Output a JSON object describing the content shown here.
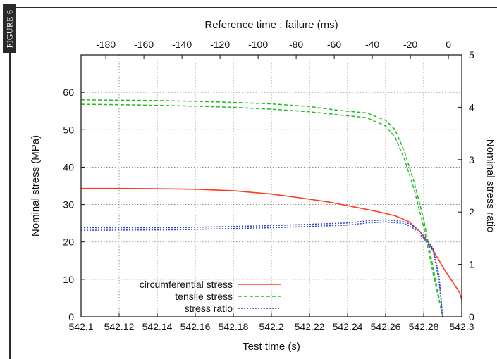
{
  "figure_label": "FIGURE 6",
  "colors": {
    "circumferential": "#ff3b1f",
    "tensile": "#22bb22",
    "ratio": "#3344cc",
    "grid": "#777777",
    "axis": "#111111"
  },
  "chart_data": {
    "type": "line",
    "title": "",
    "xlabel": "Test time (s)",
    "ylabel": "Nominal stress (MPa)",
    "x2label": "Reference time : failure (ms)",
    "y2label": "Nominal stress ratio",
    "xlim": [
      542.1,
      542.3
    ],
    "ylim": [
      0,
      70
    ],
    "x2lim": [
      -193,
      7
    ],
    "y2lim": [
      0,
      5
    ],
    "x_ticks": [
      "542.1",
      "542.12",
      "542.14",
      "542.16",
      "542.18",
      "542.2",
      "542.22",
      "542.24",
      "542.26",
      "542.28",
      "542.3"
    ],
    "x_tick_values": [
      542.1,
      542.12,
      542.14,
      542.16,
      542.18,
      542.2,
      542.22,
      542.24,
      542.26,
      542.28,
      542.3
    ],
    "y_ticks": [
      "0",
      "10",
      "20",
      "30",
      "40",
      "50",
      "60"
    ],
    "y_tick_values": [
      0,
      10,
      20,
      30,
      40,
      50,
      60
    ],
    "x2_ticks": [
      "-180",
      "-160",
      "-140",
      "-120",
      "-100",
      "-80",
      "-60",
      "-40",
      "-20",
      "0"
    ],
    "x2_tick_values": [
      -180,
      -160,
      -140,
      -120,
      -100,
      -80,
      -60,
      -40,
      -20,
      0
    ],
    "y2_ticks": [
      "0",
      "1",
      "2",
      "3",
      "4",
      "5"
    ],
    "y2_tick_values": [
      0,
      1,
      2,
      3,
      4,
      5
    ],
    "grid": true,
    "legend_position": "bottom-left",
    "series": [
      {
        "name": "circumferential stress",
        "axis": "left",
        "style": "solid",
        "color": "#ff3b1f",
        "points": [
          [
            542.1,
            34.3
          ],
          [
            542.12,
            34.3
          ],
          [
            542.14,
            34.25
          ],
          [
            542.16,
            34.1
          ],
          [
            542.18,
            33.7
          ],
          [
            542.2,
            32.8
          ],
          [
            542.215,
            31.8
          ],
          [
            542.23,
            30.7
          ],
          [
            542.245,
            29.2
          ],
          [
            542.255,
            28.2
          ],
          [
            542.265,
            27.0
          ],
          [
            542.272,
            25.5
          ],
          [
            542.278,
            22.8
          ],
          [
            542.283,
            19.5
          ],
          [
            542.287,
            16.0
          ],
          [
            542.291,
            12.5
          ],
          [
            542.295,
            9.5
          ],
          [
            542.299,
            6.3
          ],
          [
            542.3,
            4.5
          ]
        ]
      },
      {
        "name": "tensile stress",
        "axis": "left",
        "style": "dashed",
        "color": "#22bb22",
        "points": [
          [
            542.1,
            58.0
          ],
          [
            542.12,
            57.9
          ],
          [
            542.14,
            57.8
          ],
          [
            542.16,
            57.6
          ],
          [
            542.18,
            57.3
          ],
          [
            542.2,
            56.9
          ],
          [
            542.22,
            56.2
          ],
          [
            542.235,
            55.2
          ],
          [
            542.25,
            54.5
          ],
          [
            542.26,
            52.5
          ],
          [
            542.265,
            50.0
          ],
          [
            542.27,
            44.0
          ],
          [
            542.275,
            36.0
          ],
          [
            542.28,
            26.0
          ],
          [
            542.285,
            13.0
          ],
          [
            542.29,
            0.0
          ]
        ]
      },
      {
        "name": "tensile stress",
        "axis": "left",
        "style": "dashed",
        "color": "#22bb22",
        "points": [
          [
            542.1,
            56.8
          ],
          [
            542.12,
            56.7
          ],
          [
            542.14,
            56.5
          ],
          [
            542.16,
            56.3
          ],
          [
            542.18,
            56.0
          ],
          [
            542.2,
            55.5
          ],
          [
            542.22,
            54.8
          ],
          [
            542.235,
            54.0
          ],
          [
            542.25,
            53.2
          ],
          [
            542.26,
            51.0
          ],
          [
            542.265,
            48.0
          ],
          [
            542.27,
            42.0
          ],
          [
            542.275,
            34.0
          ],
          [
            542.28,
            24.0
          ],
          [
            542.285,
            11.5
          ],
          [
            542.29,
            0.0
          ]
        ]
      },
      {
        "name": "stress ratio",
        "axis": "right",
        "style": "dotted",
        "color": "#3344cc",
        "points": [
          [
            542.1,
            1.7
          ],
          [
            542.15,
            1.7
          ],
          [
            542.2,
            1.74
          ],
          [
            542.24,
            1.79
          ],
          [
            542.25,
            1.83
          ],
          [
            542.26,
            1.85
          ],
          [
            542.27,
            1.82
          ],
          [
            542.275,
            1.72
          ],
          [
            542.28,
            1.55
          ],
          [
            542.285,
            1.3
          ],
          [
            542.288,
            0.8
          ],
          [
            542.29,
            0.0
          ]
        ]
      },
      {
        "name": "stress ratio",
        "axis": "right",
        "style": "dotted",
        "color": "#3344cc",
        "points": [
          [
            542.1,
            1.65
          ],
          [
            542.15,
            1.66
          ],
          [
            542.2,
            1.7
          ],
          [
            542.24,
            1.75
          ],
          [
            542.25,
            1.79
          ],
          [
            542.26,
            1.81
          ],
          [
            542.27,
            1.78
          ],
          [
            542.275,
            1.68
          ],
          [
            542.28,
            1.5
          ],
          [
            542.285,
            1.25
          ],
          [
            542.288,
            0.7
          ],
          [
            542.29,
            0.0
          ]
        ]
      }
    ],
    "legend": [
      "circumferential stress",
      "tensile stress",
      "stress ratio"
    ]
  }
}
